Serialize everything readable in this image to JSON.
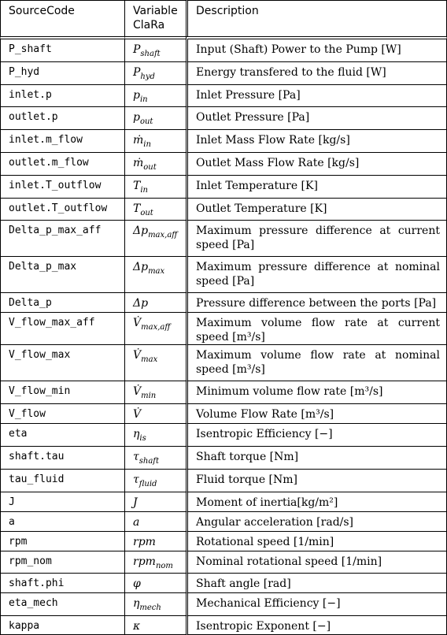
{
  "header": {
    "col1": "SourceCode",
    "col2_line1": "Variable",
    "col2_line2": "ClaRa",
    "col3": "Description"
  },
  "rows": [
    {
      "code": "P_shaft",
      "symbol": "P_shaft",
      "desc": "Input (Shaft) Power to the Pump [W]"
    },
    {
      "code": "P_hyd",
      "symbol": "P_hyd",
      "desc": "Energy transfered to the fluid [W]"
    },
    {
      "code": "inlet.p",
      "symbol": "p_in",
      "desc": "Inlet Pressure [Pa]"
    },
    {
      "code": "outlet.p",
      "symbol": "p_out",
      "desc": "Outlet Pressure [Pa]"
    },
    {
      "code": "inlet.m_flow",
      "symbol": "ṁ_in",
      "desc": "Inlet Mass Flow Rate [kg/s]"
    },
    {
      "code": "outlet.m_flow",
      "symbol": "ṁ_out",
      "desc": "Outlet Mass Flow Rate [kg/s]"
    },
    {
      "code": "inlet.T_outflow",
      "symbol": "T_in",
      "desc": "Inlet Temperature [K]"
    },
    {
      "code": "outlet.T_outflow",
      "symbol": "T_out",
      "desc": "Outlet Temperature [K]"
    },
    {
      "code": "Delta_p_max_aff",
      "symbol": "Δp_max,aff",
      "desc": "Maximum pressure difference at current speed [Pa]"
    },
    {
      "code": "Delta_p_max",
      "symbol": "Δp_max",
      "desc": "Maximum pressure difference at nominal speed [Pa]"
    },
    {
      "code": "Delta_p",
      "symbol": "Δp",
      "desc": "Pressure difference between the ports [Pa]"
    },
    {
      "code": "V_flow_max_aff",
      "symbol": "V̇_max,aff",
      "desc": "Maximum volume flow rate at current speed [m³/s]"
    },
    {
      "code": "V_flow_max",
      "symbol": "V̇_max",
      "desc": "Maximum volume flow rate at nominal speed [m³/s]"
    },
    {
      "code": "V_flow_min",
      "symbol": "V̇_min",
      "desc": "Minimum volume flow rate [m³/s]"
    },
    {
      "code": "V_flow",
      "symbol": "V̇",
      "desc": "Volume Flow Rate [m³/s]"
    },
    {
      "code": "eta",
      "symbol": "η_is",
      "desc": "Isentropic Efficiency [−]"
    },
    {
      "code": "shaft.tau",
      "symbol": "τ_shaft",
      "desc": "Shaft torque [Nm]"
    },
    {
      "code": "tau_fluid",
      "symbol": "τ_fluid",
      "desc": "Fluid torque [Nm]"
    },
    {
      "code": "J",
      "symbol": "J",
      "desc": "Moment of inertia[kg/m²]"
    },
    {
      "code": "a",
      "symbol": "a",
      "desc": "Angular acceleration [rad/s]"
    },
    {
      "code": "rpm",
      "symbol": "rpm",
      "desc": "Rotational speed [1/min]"
    },
    {
      "code": "rpm_nom",
      "symbol": "rpm_nom",
      "desc": "Nominal rotational speed [1/min]"
    },
    {
      "code": "shaft.phi",
      "symbol": "φ",
      "desc": "Shaft angle [rad]"
    },
    {
      "code": "eta_mech",
      "symbol": "η_mech",
      "desc": "Mechanical Efficiency [−]"
    },
    {
      "code": "kappa",
      "symbol": "κ",
      "desc": "Isentropic Exponent [−]"
    }
  ]
}
